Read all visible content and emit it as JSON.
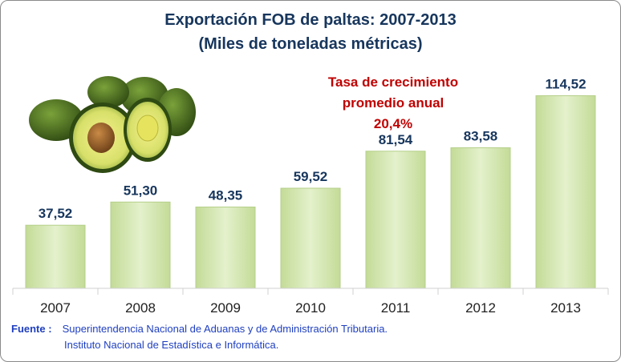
{
  "chart_data": {
    "type": "bar",
    "title": "Exportación FOB de paltas: 2007-2013",
    "subtitle": "(Miles de toneladas métricas)",
    "categories": [
      "2007",
      "2008",
      "2009",
      "2010",
      "2011",
      "2012",
      "2013"
    ],
    "values": [
      37.52,
      51.3,
      48.35,
      59.52,
      81.54,
      83.58,
      114.52
    ],
    "value_labels": [
      "37,52",
      "51,30",
      "48,35",
      "59,52",
      "81,54",
      "83,58",
      "114,52"
    ],
    "ylim": [
      0,
      120
    ],
    "grid": false,
    "legend": "none",
    "bar_color": "#d7e9b6",
    "bar_border": "#b5cf8a",
    "label_color": "#17365d"
  },
  "annotation": {
    "line1": "Tasa de crecimiento",
    "line2": "promedio anual",
    "line3": "20,4%"
  },
  "source": {
    "label": "Fuente :",
    "line1": "Superintendencia Nacional de Aduanas y de Administración Tributaria.",
    "line2": "Instituto Nacional de Estadística e Informática."
  },
  "image": {
    "icon": "avocado-illustration"
  }
}
